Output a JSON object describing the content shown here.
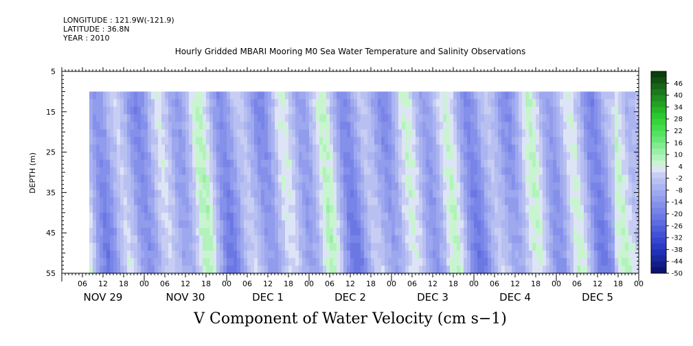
{
  "header": {
    "longitude": "LONGITUDE : 121.9W(-121.9)",
    "latitude": "LATITUDE : 36.8N",
    "year": "YEAR : 2010"
  },
  "colors": {
    "blue_mid": "#a9b4f0",
    "blue_deep": "#7f97ee",
    "green_light": "#a8f0a8",
    "green_bright": "#55e665"
  },
  "chart_data": {
    "type": "heatmap",
    "title": "Hourly Gridded MBARI Mooring M0 Sea Water Temperature and Salinity Observations",
    "xlabel": "V Component of Water Velocity (cm s−1)",
    "ylabel": "DEPTH (m)",
    "ylim": [
      55,
      5
    ],
    "y_ticks": [
      "5",
      "15",
      "25",
      "35",
      "45",
      "55"
    ],
    "x_hour_ticks": [
      "06",
      "12",
      "18",
      "00",
      "06",
      "12",
      "18",
      "00",
      "06",
      "12",
      "18",
      "00",
      "06",
      "12",
      "18",
      "00",
      "06",
      "12",
      "18",
      "00",
      "06",
      "12",
      "18",
      "00",
      "06",
      "12",
      "18",
      "00"
    ],
    "days": [
      "NOV 29",
      "NOV 30",
      "DEC  1",
      "DEC  2",
      "DEC  3",
      "DEC  4",
      "DEC  5"
    ],
    "data_depth_range": [
      10,
      55
    ],
    "colorbar": {
      "labels": [
        "46",
        "40",
        "34",
        "28",
        "22",
        "16",
        "10",
        "4",
        "-2",
        "-8",
        "-14",
        "-20",
        "-26",
        "-32",
        "-38",
        "-44",
        "-50"
      ],
      "levels": [
        52,
        49,
        46,
        43,
        40,
        37,
        34,
        31,
        28,
        25,
        22,
        19,
        16,
        13,
        10,
        7,
        4,
        1,
        -2,
        -5,
        -8,
        -11,
        -14,
        -17,
        -20,
        -23,
        -26,
        -29,
        -32,
        -35,
        -38,
        -41,
        -44,
        -47,
        -50
      ],
      "colors": [
        "#0c3d0c",
        "#124f12",
        "#176417",
        "#1c781c",
        "#1f8d1f",
        "#22a122",
        "#26b626",
        "#2bc92d",
        "#36d43a",
        "#44dc4c",
        "#55e262",
        "#6ae678",
        "#82ea8f",
        "#9aeea6",
        "#b2f2bd",
        "#c8f5cf",
        "#dde4f5",
        "#c8cdf3",
        "#b8c0f2",
        "#aab4f0",
        "#9ea8ee",
        "#929cec",
        "#8590ea",
        "#7884e7",
        "#6b78e4",
        "#5d6ce0",
        "#4f5fdc",
        "#4252d7",
        "#3646d0",
        "#2b3ac4",
        "#2130b4",
        "#1a27a0",
        "#131d8a",
        "#0c1372"
      ]
    },
    "x_start_day": "NOV 29 00"
  }
}
